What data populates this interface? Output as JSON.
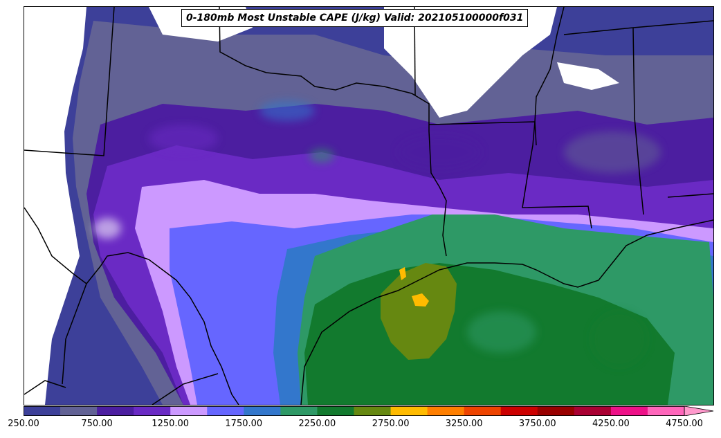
{
  "title": "0-180mb Most Unstable CAPE (J/kg) Valid: 202105100000f031",
  "colorbar": {
    "levels": [
      250,
      500,
      750,
      1000,
      1250,
      1500,
      1750,
      2000,
      2250,
      2500,
      2750,
      3000,
      3250,
      3500,
      3750,
      4000,
      4250,
      4500,
      4750
    ],
    "colors": [
      "#3d4099",
      "#626295",
      "#4c1ea0",
      "#6a2ac4",
      "#cc99ff",
      "#6666ff",
      "#3377cc",
      "#2e9966",
      "#127a2e",
      "#668811",
      "#ffbb00",
      "#ff7f00",
      "#ee4400",
      "#cc0000",
      "#990000",
      "#aa0033",
      "#ee1188",
      "#ff66bb"
    ],
    "extend_color": "#ff99cc",
    "tick_labels": [
      "250.00",
      "750.00",
      "1250.00",
      "1750.00",
      "2250.00",
      "2750.00",
      "3250.00",
      "3750.00",
      "4250.00",
      "4750.00"
    ]
  }
}
